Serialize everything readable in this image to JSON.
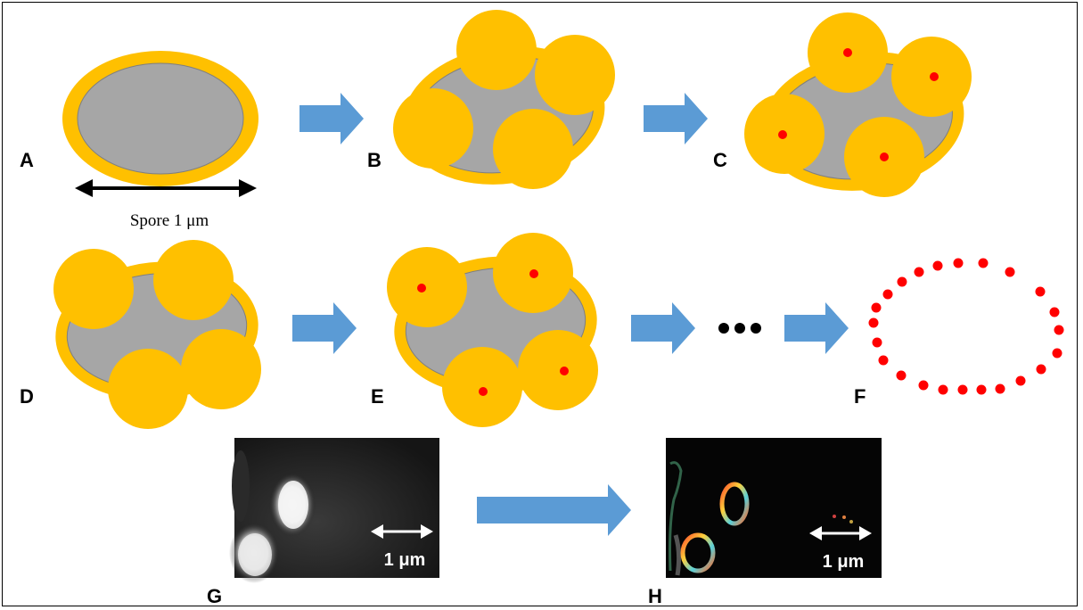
{
  "panels": {
    "A": {
      "label": "A"
    },
    "B": {
      "label": "B"
    },
    "C": {
      "label": "C"
    },
    "D": {
      "label": "D"
    },
    "E": {
      "label": "E"
    },
    "F": {
      "label": "F"
    },
    "G": {
      "label": "G"
    },
    "H": {
      "label": "H"
    }
  },
  "spore_caption": "Spore 1 μm",
  "ellipsis": "•••",
  "scale_bar_g": "1 μm",
  "scale_bar_h": "1 μm",
  "colors": {
    "coat": "#FFC000",
    "coat_outline": "#E9A800",
    "spore_core": "#A6A6A6",
    "dot": "#FF0000",
    "arrow": "#5B9BD5"
  }
}
